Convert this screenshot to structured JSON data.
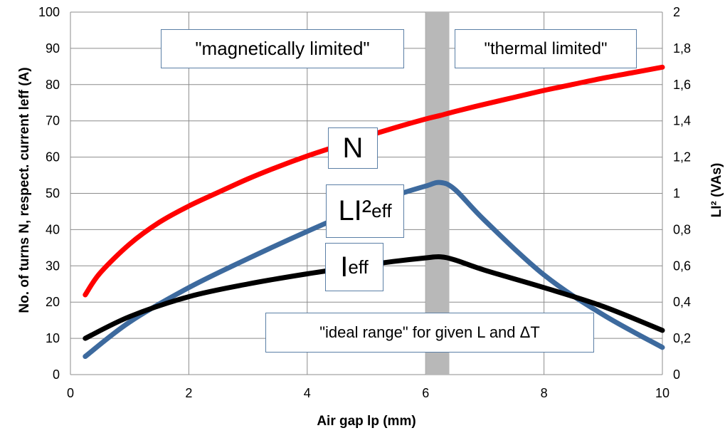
{
  "chart_data": {
    "type": "line",
    "xlabel": "Air gap lp (mm)",
    "ylabel_left": "No. of turns N, respect. current leff (A)",
    "ylabel_right": "LI² (VAs)",
    "xlim": [
      0,
      10
    ],
    "ylim_left": [
      0,
      100
    ],
    "ylim_right": [
      0,
      2
    ],
    "x_ticks": [
      "0",
      "2",
      "4",
      "6",
      "8",
      "10"
    ],
    "y_ticks_left": [
      "0",
      "10",
      "20",
      "30",
      "40",
      "50",
      "60",
      "70",
      "80",
      "90",
      "100"
    ],
    "y_ticks_right": [
      "0",
      "0,2",
      "0,4",
      "0,6",
      "0,8",
      "1",
      "1,2",
      "1,4",
      "1,6",
      "1,8",
      "2"
    ],
    "grid": true,
    "highlight_band": {
      "x_from": 6.0,
      "x_to": 6.4,
      "color": "#b8b8b8"
    },
    "series": [
      {
        "name": "N",
        "axis": "left",
        "color": "#ff0000",
        "x": [
          0.25,
          0.5,
          1.0,
          1.5,
          2.0,
          2.5,
          3.0,
          3.5,
          4.0,
          4.5,
          5.0,
          5.5,
          6.0,
          6.25,
          6.5,
          7.0,
          7.5,
          8.0,
          8.5,
          9.0,
          9.5,
          10.0
        ],
        "y": [
          22,
          28,
          36,
          42,
          46.5,
          50.3,
          54,
          57.3,
          60.3,
          63,
          65.7,
          68.2,
          70.5,
          71.5,
          72.6,
          74.6,
          76.5,
          78.4,
          80.1,
          81.8,
          83.3,
          84.8
        ]
      },
      {
        "name": "LI²eff",
        "axis": "right",
        "color": "#3d6a9e",
        "x": [
          0.25,
          1.0,
          2.0,
          3.0,
          4.0,
          5.0,
          5.5,
          6.0,
          6.25,
          6.5,
          7.0,
          8.0,
          9.0,
          10.0
        ],
        "y": [
          0.1,
          0.29,
          0.48,
          0.64,
          0.79,
          0.93,
          0.99,
          1.04,
          1.06,
          1.02,
          0.85,
          0.55,
          0.33,
          0.15
        ]
      },
      {
        "name": "Ieff",
        "axis": "left",
        "color": "#000000",
        "x": [
          0.25,
          1.0,
          2.0,
          3.0,
          4.0,
          5.0,
          5.5,
          6.0,
          6.25,
          6.5,
          7.0,
          8.0,
          9.0,
          10.0
        ],
        "y": [
          10,
          16,
          21.5,
          25,
          27.8,
          30.2,
          31.3,
          32.2,
          32.5,
          31.6,
          28.8,
          24,
          18.8,
          12.2
        ]
      }
    ],
    "annotations": {
      "magnetic": "\"magnetically limited\"",
      "thermal": "\"thermal limited\"",
      "ideal": "\"ideal range\" for given L and ΔT",
      "label_n": "N",
      "label_li_main": "LI²",
      "label_li_sub": "eff",
      "label_i_main": "I",
      "label_i_sub": "eff"
    }
  }
}
